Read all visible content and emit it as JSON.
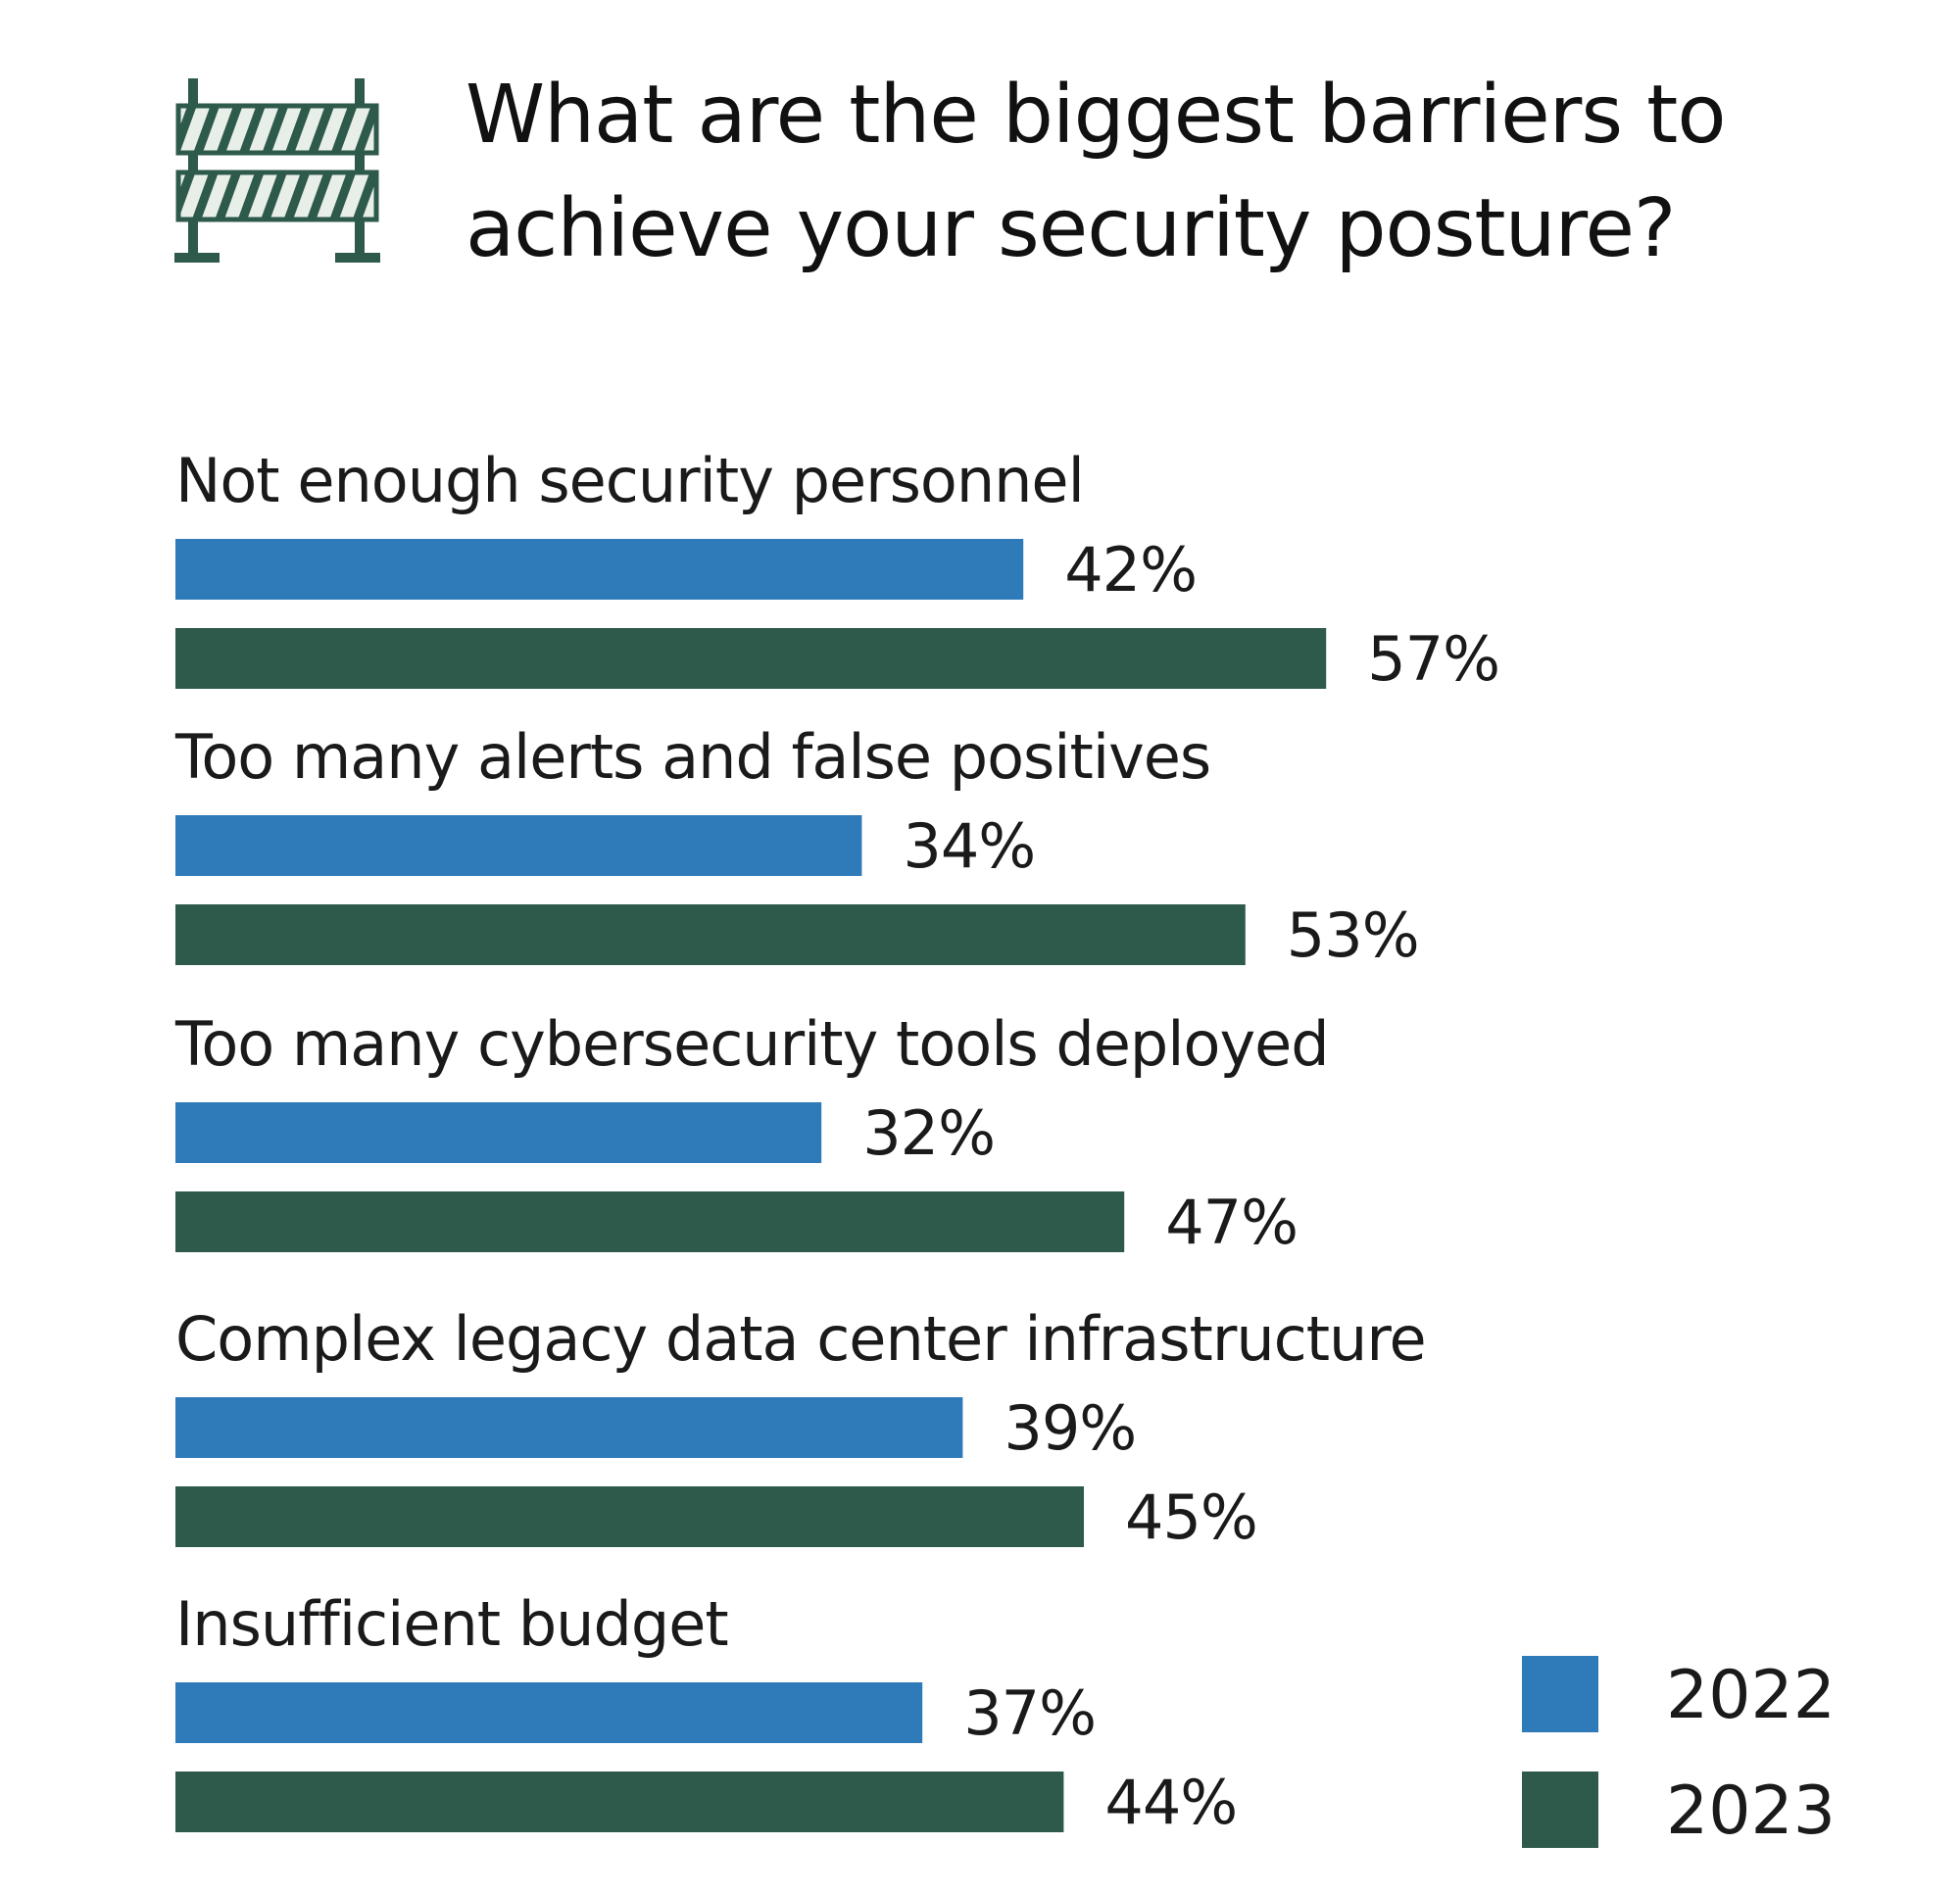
{
  "chart_data": {
    "type": "bar",
    "orientation": "horizontal",
    "title": "What are the biggest barriers to achieve your security posture?",
    "categories": [
      "Not enough security personnel",
      "Too many alerts and false positives",
      "Too many cybersecurity tools deployed",
      "Complex legacy data center infrastructure",
      "Insufficient budget"
    ],
    "series": [
      {
        "name": "2022",
        "color": "#2f7ab8",
        "values": [
          42,
          34,
          32,
          39,
          37
        ],
        "labels": [
          "42%",
          "34%",
          "32%",
          "39%",
          "37%"
        ]
      },
      {
        "name": "2023",
        "color": "#2d5a4a",
        "values": [
          57,
          53,
          47,
          45,
          44
        ],
        "labels": [
          "57%",
          "53%",
          "47%",
          "45%",
          "44%"
        ]
      }
    ],
    "xlabel": "",
    "ylabel": "",
    "xlim": [
      0,
      100
    ],
    "unit": "%",
    "grid": false,
    "legend_position": "bottom-right"
  },
  "icon": {
    "name": "road-barrier-icon",
    "color": "#2d5a4a"
  }
}
